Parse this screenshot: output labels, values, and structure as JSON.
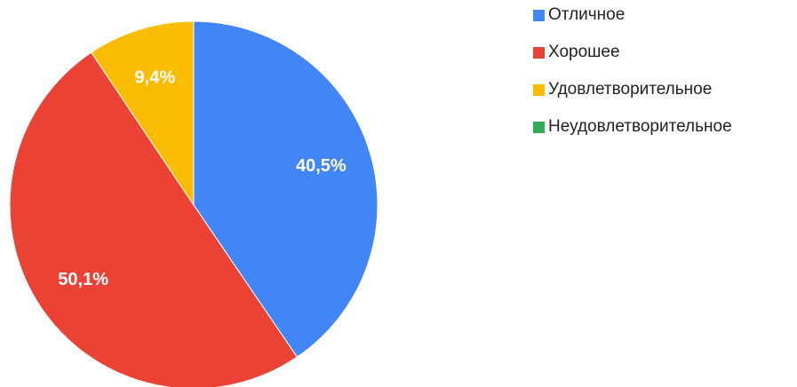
{
  "chart_data": {
    "type": "pie",
    "title": "",
    "categories": [
      "Отличное",
      "Хорошее",
      "Удовлетворительное",
      "Неудовлетворительное"
    ],
    "values": [
      40.5,
      50.1,
      9.4,
      0
    ],
    "value_labels": [
      "40,5%",
      "50,1%",
      "9,4%",
      ""
    ],
    "colors": [
      "#4285f4",
      "#ea4335",
      "#fbbc04",
      "#34a853"
    ],
    "start_angle_deg": 0,
    "direction": "clockwise",
    "legend_position": "right"
  }
}
